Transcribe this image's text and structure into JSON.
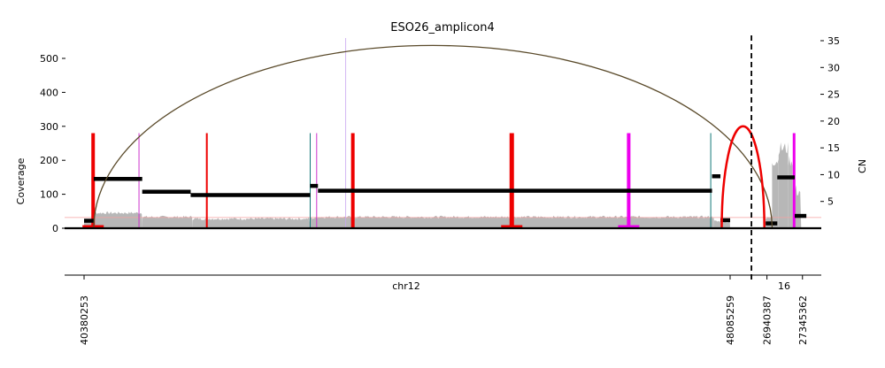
{
  "chart_data": {
    "type": "amplicon-structure",
    "title": "ESO26_amplicon4",
    "ylabel_left": "Coverage",
    "ylabel_right": "CN",
    "xlabel": "chr12",
    "second_chrom_label": "16",
    "ylim_left": [
      0,
      560
    ],
    "ylim_right": [
      0,
      36
    ],
    "yticks_left": [
      {
        "value": 0,
        "label": "0"
      },
      {
        "value": 100,
        "label": "100"
      },
      {
        "value": 200,
        "label": "200"
      },
      {
        "value": 300,
        "label": "300"
      },
      {
        "value": 400,
        "label": "400"
      },
      {
        "value": 500,
        "label": "500"
      }
    ],
    "yticks_right": [
      {
        "value": 5,
        "label": "5"
      },
      {
        "value": 10,
        "label": "10"
      },
      {
        "value": 15,
        "label": "15"
      },
      {
        "value": 20,
        "label": "20"
      },
      {
        "value": 25,
        "label": "25"
      },
      {
        "value": 30,
        "label": "30"
      },
      {
        "value": 35,
        "label": "35"
      }
    ],
    "xticks": [
      {
        "pos": 0.0,
        "label": "40380253"
      },
      {
        "pos": 1.0,
        "label": "48085259"
      },
      {
        "pos": 1.057,
        "label": "26940387"
      },
      {
        "pos": 1.112,
        "label": "27345362"
      }
    ],
    "coverage_profile": [
      {
        "x0": 0.0,
        "x1": 0.012,
        "cov": 20
      },
      {
        "x0": 0.012,
        "x1": 0.09,
        "cov": 45
      },
      {
        "x0": 0.09,
        "x1": 0.168,
        "cov": 33
      },
      {
        "x0": 0.168,
        "x1": 0.35,
        "cov": 28
      },
      {
        "x0": 0.35,
        "x1": 0.36,
        "cov": 30
      },
      {
        "x0": 0.36,
        "x1": 0.975,
        "cov": 33
      },
      {
        "x0": 0.975,
        "x1": 1.0,
        "cov": 20
      },
      {
        "x0": 1.055,
        "x1": 1.065,
        "cov": 30
      },
      {
        "x0": 1.065,
        "x1": 1.075,
        "cov": 200
      },
      {
        "x0": 1.075,
        "x1": 1.09,
        "cov": 235
      },
      {
        "x0": 1.09,
        "x1": 1.097,
        "cov": 200
      },
      {
        "x0": 1.097,
        "x1": 1.11,
        "cov": 110
      }
    ],
    "cn_segments": [
      {
        "x0": 0.0,
        "x1": 0.015,
        "cn": 1.4
      },
      {
        "x0": 0.015,
        "x1": 0.09,
        "cn": 9.2
      },
      {
        "x0": 0.09,
        "x1": 0.165,
        "cn": 6.8
      },
      {
        "x0": 0.165,
        "x1": 0.35,
        "cn": 6.2
      },
      {
        "x0": 0.35,
        "x1": 0.362,
        "cn": 7.9
      },
      {
        "x0": 0.362,
        "x1": 0.972,
        "cn": 7.0
      },
      {
        "x0": 0.972,
        "x1": 0.985,
        "cn": 9.7
      },
      {
        "x0": 0.985,
        "x1": 1.0,
        "cn": 1.5
      },
      {
        "x0": 1.055,
        "x1": 1.073,
        "cn": 0.9
      },
      {
        "x0": 1.073,
        "x1": 1.1,
        "cn": 9.5
      },
      {
        "x0": 1.1,
        "x1": 1.118,
        "cn": 2.3
      }
    ],
    "cn_reference_line": 2,
    "breakpoint_lines": [
      {
        "pos": 0.014,
        "color": "#ee0000",
        "width": 4
      },
      {
        "pos": 0.085,
        "color": "#cc33cc",
        "width": 1
      },
      {
        "pos": 0.19,
        "color": "#ee0000",
        "width": 2
      },
      {
        "pos": 0.35,
        "color": "#117777",
        "width": 1
      },
      {
        "pos": 0.36,
        "color": "#cc33cc",
        "width": 1
      },
      {
        "pos": 0.416,
        "color": "#ee0000",
        "width": 4
      },
      {
        "pos": 0.662,
        "color": "#ee0000",
        "width": 5
      },
      {
        "pos": 0.843,
        "color": "#ee00ee",
        "width": 4
      },
      {
        "pos": 0.97,
        "color": "#117777",
        "width": 1
      },
      {
        "pos": 1.099,
        "color": "#ee00ee",
        "width": 3
      }
    ],
    "foldback_marks": [
      {
        "pos": 0.014,
        "color": "#ee0000"
      },
      {
        "pos": 0.662,
        "color": "#ee0000"
      },
      {
        "pos": 0.843,
        "color": "#ee00ee"
      }
    ],
    "arcs": [
      {
        "from": 0.015,
        "to": 1.065,
        "apex": 538,
        "color": "#5a4a2a",
        "width": 1.3
      },
      {
        "from": 0.987,
        "to": 1.053,
        "apex": 300,
        "color": "#ee0000",
        "width": 2.5
      }
    ],
    "thin_vertical_line": {
      "pos": 0.405,
      "color": "#c9a6f0"
    },
    "dashed_divider_pos": 1.033,
    "palette": {
      "coverage_fill": "#b7b7b7",
      "cn_segment": "#000000",
      "reference_line": "#f4a0a0"
    }
  }
}
